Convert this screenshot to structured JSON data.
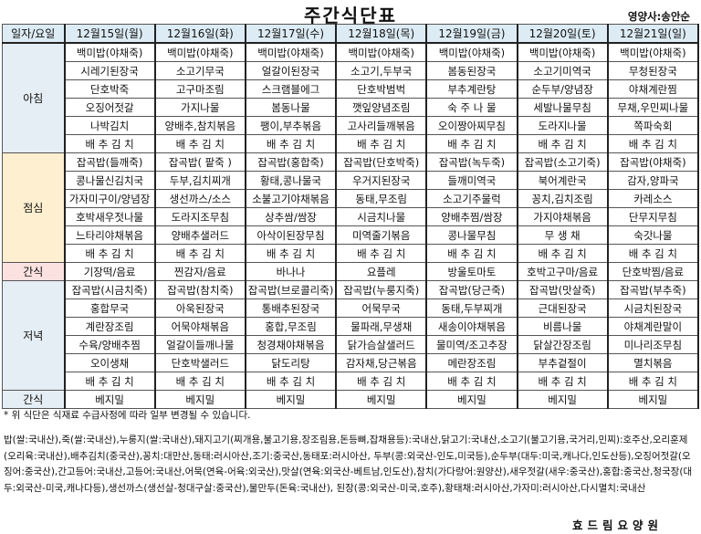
{
  "title": "주간식단표",
  "nutritionist": "영양사:송안순",
  "header": {
    "corner": "일자/요일",
    "days": [
      "12월15일(월)",
      "12월16일(화)",
      "12월17일(수)",
      "12월18일(목)",
      "12월19일(금)",
      "12월20일(토)",
      "12월21일(일)"
    ]
  },
  "meals": [
    {
      "label": "아침",
      "rows": [
        [
          "백미밥(야채죽)",
          "백미밥(야채죽)",
          "백미밥(야채죽)",
          "백미밥(야채죽)",
          "백미밥(야채죽)",
          "백미밥(야채죽)",
          "백미밥(야채죽)"
        ],
        [
          "시레기된장국",
          "소고기무국",
          "얼갈이된장국",
          "소고기,두부국",
          "봄동된장국",
          "소고기미역국",
          "무청된장국"
        ],
        [
          "단호박죽",
          "고구마조림",
          "스크램블에그",
          "단호박범벅",
          "부추계란탕",
          "순두부/양념장",
          "야채계란찜"
        ],
        [
          "오징어젓갈",
          "가지나물",
          "봄동나물",
          "깻잎양념조림",
          "숙 주 나 물",
          "세발나물무침",
          "무채,우민찌나물"
        ],
        [
          "나박김치",
          "양배추,참치볶음",
          "팽이,부추볶음",
          "고사리들깨볶음",
          "오이짱아찌무침",
          "도라지나물",
          "쪽파숙회"
        ],
        [
          "배 추 김 치",
          "배 추 김 치",
          "배 추 김 치",
          "배 추 김 치",
          "배 추 김 치",
          "배 추 김 치",
          "배 추 김 치"
        ]
      ]
    },
    {
      "label": "점심",
      "rows": [
        [
          "잡곡밥(들깨죽)",
          "잡곡밥( 팥죽 )",
          "잡곡밥(홍합죽)",
          "잡곡밥(단호박죽)",
          "잡곡밥(녹두죽)",
          "잡곡밥(소고기죽)",
          "잡곡밥(야채죽)"
        ],
        [
          "콩나물신김치국",
          "두부,김치찌개",
          "황태,콩나물국",
          "우거지된장국",
          "들깨미역국",
          "북어계란국",
          "감자,양파국"
        ],
        [
          "가자미구이/양념장",
          "생선까스/소스",
          "소불고기야채볶음",
          "동태,무조림",
          "소고기주물럭",
          "꽁치,김치조림",
          "카레소스"
        ],
        [
          "호박새우젓나물",
          "도라지조무침",
          "상추쌈/쌈장",
          "시금치나물",
          "양배추찜/쌈장",
          "가지야채볶음",
          "단무지무침"
        ],
        [
          "느타리야채볶음",
          "양배추샐러드",
          "아삭이된장무침",
          "미역줄기볶음",
          "콩나물무침",
          "무 생 채",
          "숙갓나물"
        ],
        [
          "배 추 김 치",
          "배 추 김 치",
          "배 추 김 치",
          "배 추 김 치",
          "배 추 김 치",
          "배 추 김 치",
          "배 추 김 치"
        ]
      ]
    },
    {
      "label": "간식",
      "rows": [
        [
          "기장떡/음료",
          "찐감자/음료",
          "바나나",
          "요플레",
          "방울토마토",
          "호박고구마/음료",
          "단호박찜/음료"
        ]
      ]
    },
    {
      "label": "저녁",
      "rows": [
        [
          "잡곡밥(시금치죽)",
          "잡곡밥(참치죽)",
          "잡곡밥(브로콜리죽)",
          "잡곡밥(누룽지죽)",
          "잡곡밥(당근죽)",
          "잡곡밥(맛살죽)",
          "잡곡밥(부추죽)"
        ],
        [
          "홍합무국",
          "아욱된장국",
          "통배추된장국",
          "어묵무국",
          "동태,두부찌개",
          "근대된장국",
          "시금치된장국"
        ],
        [
          "계란장조림",
          "어묵야채볶음",
          "홍합,무조림",
          "물파래,무생채",
          "새송이야채볶음",
          "비름나물",
          "야채계란말이"
        ],
        [
          "수육/양배추찜",
          "얼갈이들깨나물",
          "청경채야채볶음",
          "닭가슴살샐러드",
          "물미역/조고추장",
          "닭살간장조림",
          "미나리조무침"
        ],
        [
          "오이생채",
          "단호박샐러드",
          "닭도리탕",
          "감자채,당근볶음",
          "메란장조림",
          "부추겉절이",
          "멸치볶음"
        ],
        [
          "배 추 김 치",
          "배 추 김 치",
          "배 추 김 치",
          "배 추 김 치",
          "배 추 김 치",
          "배 추 김 치",
          "배 추 김 치"
        ]
      ]
    },
    {
      "label": "간식",
      "rows": [
        [
          "베지밀",
          "베지밀",
          "베지밀",
          "베지밀",
          "베지밀",
          "베지밀",
          "베지밀"
        ]
      ]
    }
  ],
  "note": "* 위 식단은 식재료 수급사정에 따라 일부 변경될 수 있습니다.",
  "origin": "밥(쌀:국내산),죽(쌀:국내산),누룽지(쌀:국내산),돼지고기(찌개용,불고기용,장조림용,돈등뼈,잡채용등):국내산,닭고기:국내산,소고기(불고기용,국거리,민찌):호주산,오리훈제(오리육:국내산),배추김치(중국산),꽁치:대만산,동태:러시아산,조기:중국산,동태포:러시아산, 두부(콩:외국산-인도,미국등),순두부(대두:미국,캐나다,인도산등),오징어젓갈(오징어:중국산),간고등어:국내산,고등어:국내산,어묵(연육-어육:외국산),맛살(연육:외국산-베트남,인도산),참치(가다랑어:원양산),새우젓갈(새우:중국산),홍합:중국산,청국장(대두:외국산-미국,캐나다등),생선까스(생선살-청대구살:중국산),물만두(돈육:국내산), 된장(콩:외국산-미국,호주),황태채:러시아산,가자미:러시아산,다시멸치:국내산",
  "facility": "효드림요양원"
}
